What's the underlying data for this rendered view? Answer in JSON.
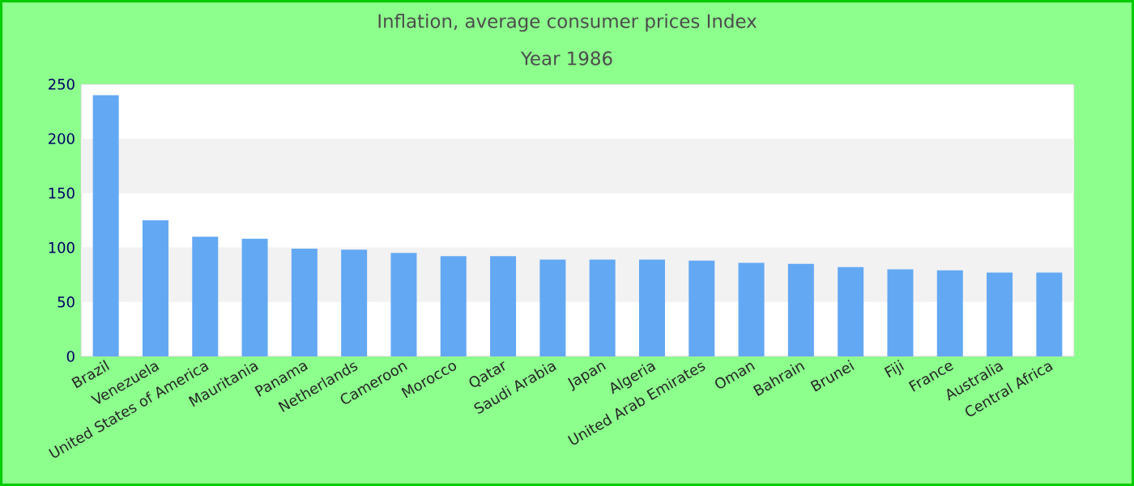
{
  "chart_data": {
    "type": "bar",
    "title": "Inflation, average consumer prices  Index",
    "subtitle": "Year 1986",
    "categories": [
      "Brazil",
      "Venezuela",
      "United States of America",
      "Mauritania",
      "Panama",
      "Netherlands",
      "Cameroon",
      "Morocco",
      "Qatar",
      "Saudi Arabia",
      "Japan",
      "Algeria",
      "United Arab Emirates",
      "Oman",
      "Bahrain",
      "Brunei",
      "Fiji",
      "France",
      "Australia",
      "Central Africa"
    ],
    "values": [
      240,
      125,
      110,
      108,
      99,
      98,
      95,
      92,
      92,
      89,
      89,
      89,
      88,
      86,
      85,
      82,
      80,
      79,
      77,
      77
    ],
    "color": "#63a8f3",
    "ylim": [
      0,
      250
    ],
    "yticks": [
      0,
      50,
      100,
      150,
      200,
      250
    ],
    "bands": [
      {
        "axis": "y",
        "from": 50,
        "to": 100,
        "color": "#f2f2f2"
      },
      {
        "axis": "y",
        "from": 150,
        "to": 200,
        "color": "#f2f2f2"
      }
    ]
  }
}
